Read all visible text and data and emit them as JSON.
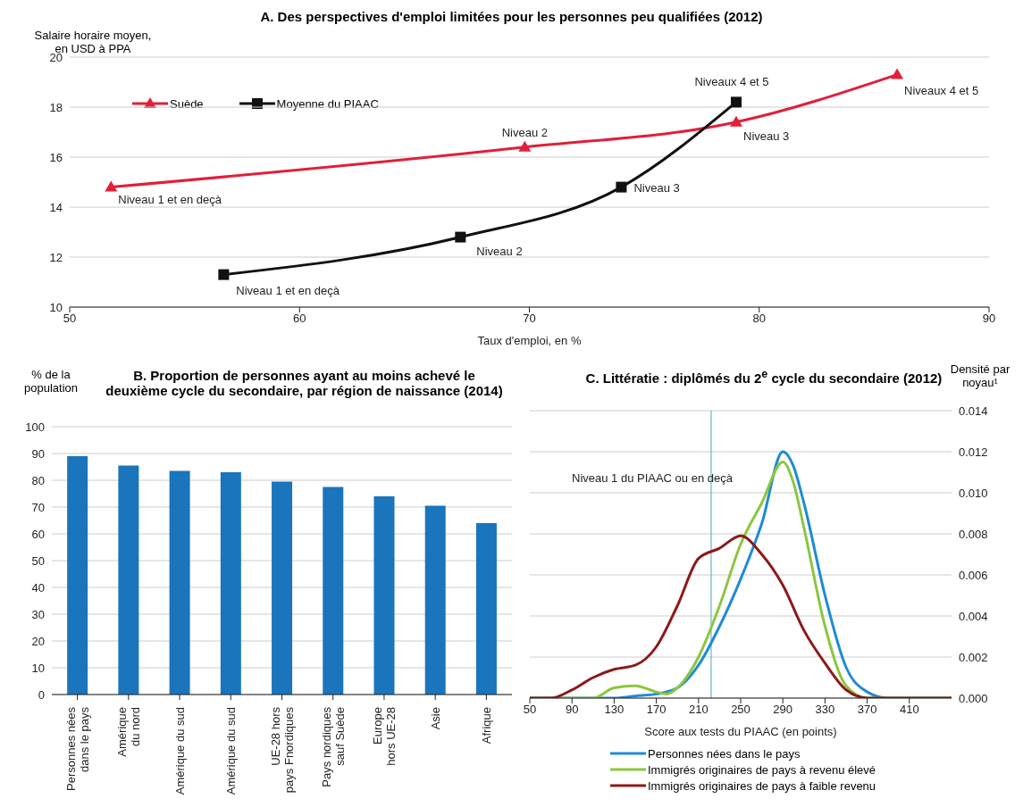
{
  "chart_data": [
    {
      "type": "line",
      "title": "A. Des perspectives d'emploi limitées pour les personnes peu qualifiées (2012)",
      "xlabel": "Taux d'emploi, en %",
      "ylabel": "Salaire horaire moyen, en USD à PPA",
      "xlim": [
        50,
        90
      ],
      "xticks": [
        50,
        60,
        70,
        80,
        90
      ],
      "ylim": [
        10,
        20
      ],
      "yticks": [
        10,
        12,
        14,
        16,
        18,
        20
      ],
      "grid": "y",
      "legend": "top left",
      "series": [
        {
          "name": "Suède",
          "color": "#e0203a",
          "marker": "triangle",
          "x": [
            51.8,
            69.8,
            79,
            86
          ],
          "values": [
            14.8,
            16.4,
            17.4,
            19.3
          ]
        },
        {
          "name": "Moyenne du PIAAC",
          "color": "#111111",
          "marker": "square",
          "x": [
            56.7,
            67,
            74,
            79
          ],
          "values": [
            11.3,
            12.8,
            14.8,
            18.2
          ]
        }
      ],
      "annotations": [
        {
          "text": "Niveau 1 et en deçà",
          "x": 51.8,
          "y": 14.8
        },
        {
          "text": "Niveau 2",
          "x": 69.8,
          "y": 16.4
        },
        {
          "text": "Niveau 3",
          "x": 79,
          "y": 17.4
        },
        {
          "text": "Niveaux 4 et 5",
          "x": 86,
          "y": 19.3
        },
        {
          "text": "Niveau 1 et en deçà",
          "x": 56.7,
          "y": 11.3
        },
        {
          "text": "Niveau 2",
          "x": 67,
          "y": 12.8
        },
        {
          "text": "Niveau 3",
          "x": 74,
          "y": 14.8
        },
        {
          "text": "Niveaux 4 et 5",
          "x": 79,
          "y": 18.2
        }
      ]
    },
    {
      "type": "bar",
      "title": "B. Proportion de personnes ayant au moins achevé le deuxième cycle du secondaire, par région de naissance (2014)",
      "ylabel": "% de la population",
      "categories": [
        "Personnes nées dans le pays",
        "Amérique du nord",
        "Amérique du sud",
        "Amérique du sud",
        "UE-28 hors pays Fnordiques",
        "Pays nordiques sauf Suède",
        "Europe hors UE-28",
        "Asie",
        "Afrique"
      ],
      "values": [
        89,
        85.5,
        83.5,
        83,
        79.5,
        77.5,
        74,
        70.5,
        64
      ],
      "color": "#1a75bc",
      "ylim": [
        0,
        100
      ],
      "yticks": [
        0,
        10,
        20,
        30,
        40,
        50,
        60,
        70,
        80,
        90,
        100
      ],
      "grid": "y"
    },
    {
      "type": "line",
      "title": "C. Littératie : diplômés du 2$^{e}$ cycle du secondaire (2012)",
      "xlabel": "Score aux tests du PIAAC (en points)",
      "y2label": "Densité par noyau¹",
      "xlim": [
        50,
        450
      ],
      "xticks": [
        50,
        90,
        130,
        170,
        210,
        250,
        290,
        330,
        370,
        410
      ],
      "y2lim": [
        0,
        0.014
      ],
      "y2ticks": [
        {
          "value": 0,
          "label": "0.000"
        },
        {
          "value": 0.002,
          "label": "0.002"
        },
        {
          "value": 0.004,
          "label": "0.004"
        },
        {
          "value": 0.006,
          "label": "0.006"
        },
        {
          "value": 0.008,
          "label": "0.008"
        },
        {
          "value": 0.01,
          "label": "0.010"
        },
        {
          "value": 0.012,
          "label": "0.012"
        },
        {
          "value": 0.014,
          "label": "0.014"
        }
      ],
      "grid": "y",
      "legend": "bottom",
      "marker": "none",
      "ref_lines": [
        {
          "axis": "x",
          "value": 222,
          "label": "Niveau 1 du PIAAC ou en deçà",
          "color": "#4aa3c8"
        }
      ],
      "series": [
        {
          "name": "Personnes nées dans le pays",
          "color": "#1f8bd6",
          "axis": "y2",
          "x": [
            50,
            110,
            130,
            150,
            170,
            190,
            210,
            230,
            250,
            270,
            290,
            300,
            310,
            330,
            350,
            370,
            390,
            450
          ],
          "values": [
            0,
            0,
            0,
            0.0001,
            0.0002,
            0.0005,
            0.0016,
            0.0035,
            0.0058,
            0.0085,
            0.012,
            0.0113,
            0.0095,
            0.005,
            0.0015,
            0.0003,
            0,
            0
          ]
        },
        {
          "name": "Immigrés originaires de pays à revenu élevé",
          "color": "#8dc63f",
          "axis": "y2",
          "x": [
            50,
            90,
            110,
            130,
            150,
            170,
            180,
            190,
            210,
            230,
            250,
            270,
            290,
            300,
            310,
            330,
            350,
            370,
            450
          ],
          "values": [
            0,
            0,
            0,
            0.0005,
            0.0006,
            0.0003,
            0.0002,
            0.0005,
            0.002,
            0.0045,
            0.0075,
            0.0095,
            0.0115,
            0.0105,
            0.0083,
            0.0035,
            0.0006,
            0,
            0
          ]
        },
        {
          "name": "Immigrés originaires de pays à faible revenu",
          "color": "#8b1a1a",
          "axis": "y2",
          "x": [
            50,
            70,
            90,
            110,
            130,
            150,
            170,
            190,
            210,
            230,
            250,
            270,
            290,
            310,
            330,
            350,
            370,
            450
          ],
          "values": [
            0,
            0,
            0.0004,
            0.001,
            0.0014,
            0.0016,
            0.0025,
            0.0045,
            0.0068,
            0.0073,
            0.0079,
            0.007,
            0.0055,
            0.0033,
            0.0017,
            0.0004,
            0,
            0
          ]
        }
      ]
    }
  ]
}
